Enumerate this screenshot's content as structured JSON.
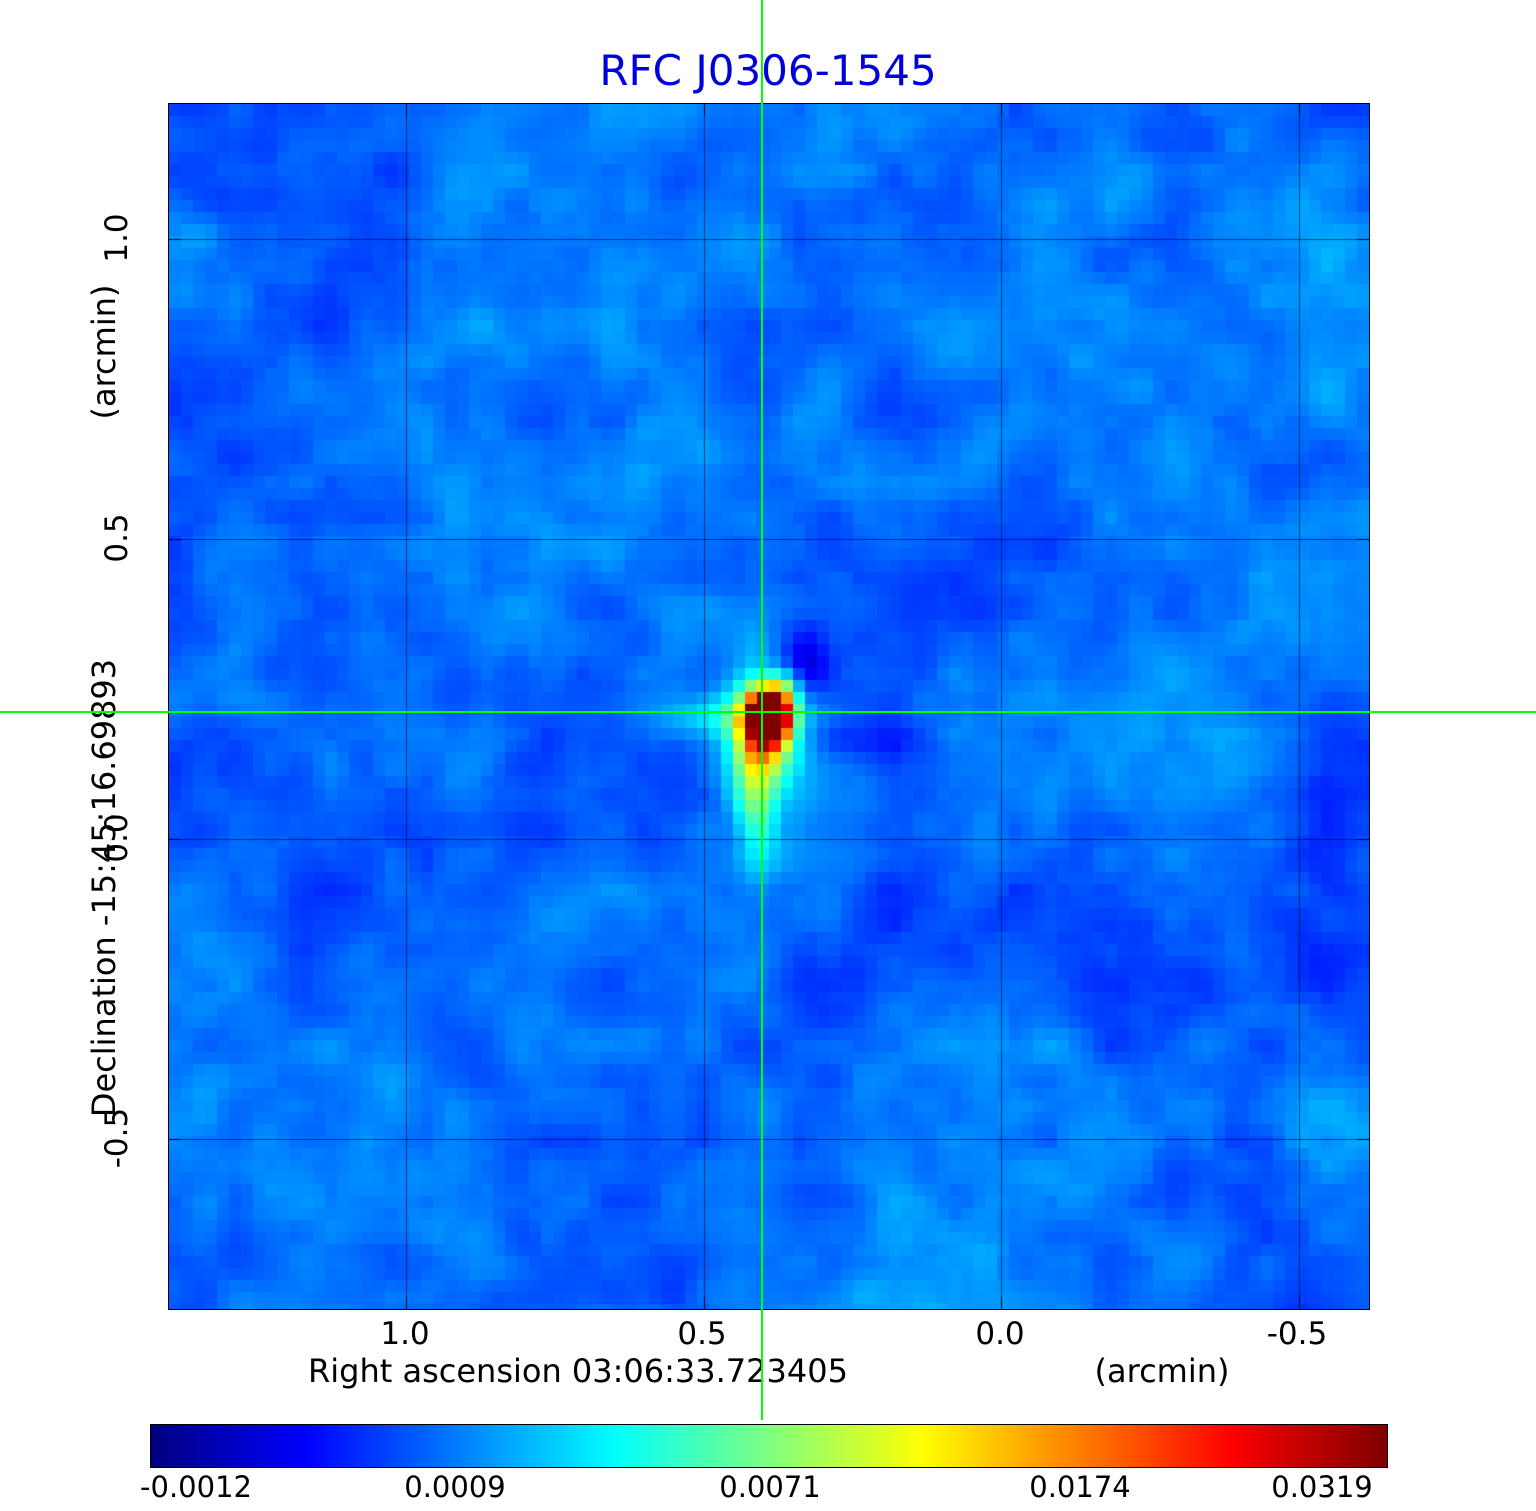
{
  "title": "RFC J0306-1545",
  "colors": {
    "title": "#0000dd",
    "crosshair": "#00ff00",
    "grid": "rgba(0,0,0,0.55)"
  },
  "axes": {
    "x_title": "Right ascension  03:06:33.723405",
    "x_unit": "(arcmin)",
    "y_title": "Declination  -15:45:16.69893",
    "y_unit": "(arcmin)",
    "x_ticks": [
      "1.0",
      "0.5",
      "0.0",
      "-0.5"
    ],
    "y_ticks": [
      "1.0",
      "0.5",
      "0.0",
      "-0.5"
    ]
  },
  "colorbar": {
    "labels": [
      "-0.0012",
      "0.0009",
      "0.0071",
      "0.0174",
      "0.0319"
    ]
  },
  "chart_data": {
    "type": "heatmap",
    "title": "RFC J0306-1545",
    "xlabel": "Right ascension 03:06:33.723405 (arcmin)",
    "ylabel": "Declination -15:45:16.69893 (arcmin)",
    "x_range": [
      1.4,
      -0.62
    ],
    "y_range": [
      -0.78,
      1.23
    ],
    "x_tick_values": [
      1.0,
      0.5,
      0.0,
      -0.5
    ],
    "y_tick_values": [
      1.0,
      0.5,
      0.0,
      -0.5
    ],
    "grid": true,
    "colormap": "jet",
    "colorbar_tick_values": [
      -0.0012,
      0.0009,
      0.0071,
      0.0174,
      0.0319
    ],
    "background_rms_level": 0.0009,
    "source": {
      "ra": "03:06:33.723405",
      "dec": "-15:45:16.69893",
      "x_arcmin": 0.4,
      "y_arcmin": 0.21,
      "peak_value": 0.0319
    },
    "crosshair": {
      "x_arcmin": 0.4,
      "y_arcmin": 0.21
    }
  }
}
